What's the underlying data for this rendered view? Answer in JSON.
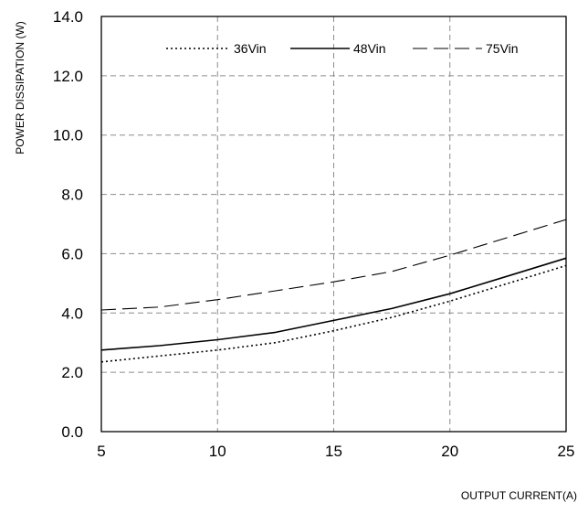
{
  "chart_data": {
    "type": "line",
    "title": "",
    "xlabel": "OUTPUT CURRENT(A)",
    "ylabel": "POWER DISSIPATION (W)",
    "xlim": [
      5,
      25
    ],
    "ylim": [
      0,
      14
    ],
    "xticks": [
      5,
      10,
      15,
      20,
      25
    ],
    "xtick_labels": [
      "5",
      "10",
      "15",
      "20",
      "25"
    ],
    "yticks": [
      0,
      2,
      4,
      6,
      8,
      10,
      12,
      14
    ],
    "ytick_labels": [
      "0.0",
      "2.0",
      "4.0",
      "6.0",
      "8.0",
      "10.0",
      "12.0",
      "14.0"
    ],
    "grid": true,
    "legend_position": "top",
    "series": [
      {
        "name": "36Vin",
        "style": "dotted",
        "color": "#000000",
        "x": [
          5,
          7.5,
          10,
          12.5,
          15,
          17.5,
          20,
          22.5,
          25
        ],
        "y": [
          2.35,
          2.55,
          2.75,
          3.0,
          3.4,
          3.85,
          4.4,
          5.0,
          5.6
        ]
      },
      {
        "name": "48Vin",
        "style": "solid",
        "color": "#000000",
        "x": [
          5,
          7.5,
          10,
          12.5,
          15,
          17.5,
          20,
          22.5,
          25
        ],
        "y": [
          2.75,
          2.9,
          3.1,
          3.35,
          3.75,
          4.15,
          4.65,
          5.25,
          5.85
        ]
      },
      {
        "name": "75Vin",
        "style": "dashed",
        "color": "#000000",
        "x": [
          5,
          7.5,
          10,
          12.5,
          15,
          17.5,
          20,
          22.5,
          25
        ],
        "y": [
          4.1,
          4.2,
          4.45,
          4.75,
          5.05,
          5.4,
          5.95,
          6.55,
          7.15
        ]
      }
    ]
  }
}
